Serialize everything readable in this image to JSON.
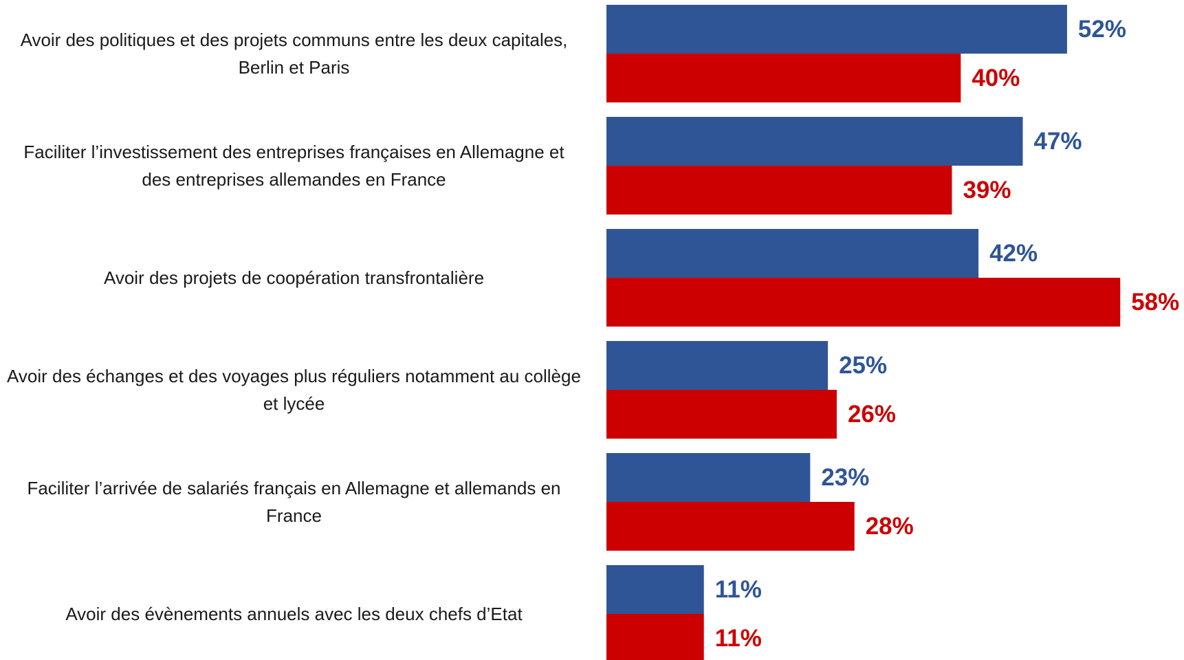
{
  "chart_data": {
    "type": "bar",
    "orientation": "horizontal",
    "categories": [
      "Avoir des politiques et des projets communs entre les deux capitales, Berlin et Paris",
      "Faciliter l’investissement des entreprises françaises en Allemagne et des entreprises allemandes en France",
      "Avoir des projets de coopération transfrontalière",
      "Avoir des échanges et des voyages plus réguliers notamment au collège et lycée",
      "Faciliter l’arrivée de salariés français en Allemagne et allemands en France",
      "Avoir des évènements annuels avec les deux chefs d’Etat"
    ],
    "series": [
      {
        "color": "#2f5597",
        "values": [
          52,
          47,
          42,
          25,
          23,
          11
        ],
        "value_labels": [
          "52%",
          "47%",
          "42%",
          "25%",
          "23%",
          "11%"
        ]
      },
      {
        "color": "#cc0000",
        "values": [
          40,
          39,
          58,
          26,
          28,
          11
        ],
        "value_labels": [
          "40%",
          "39%",
          "58%",
          "26%",
          "28%",
          "11%"
        ]
      }
    ],
    "xlim": [
      0,
      60
    ]
  }
}
